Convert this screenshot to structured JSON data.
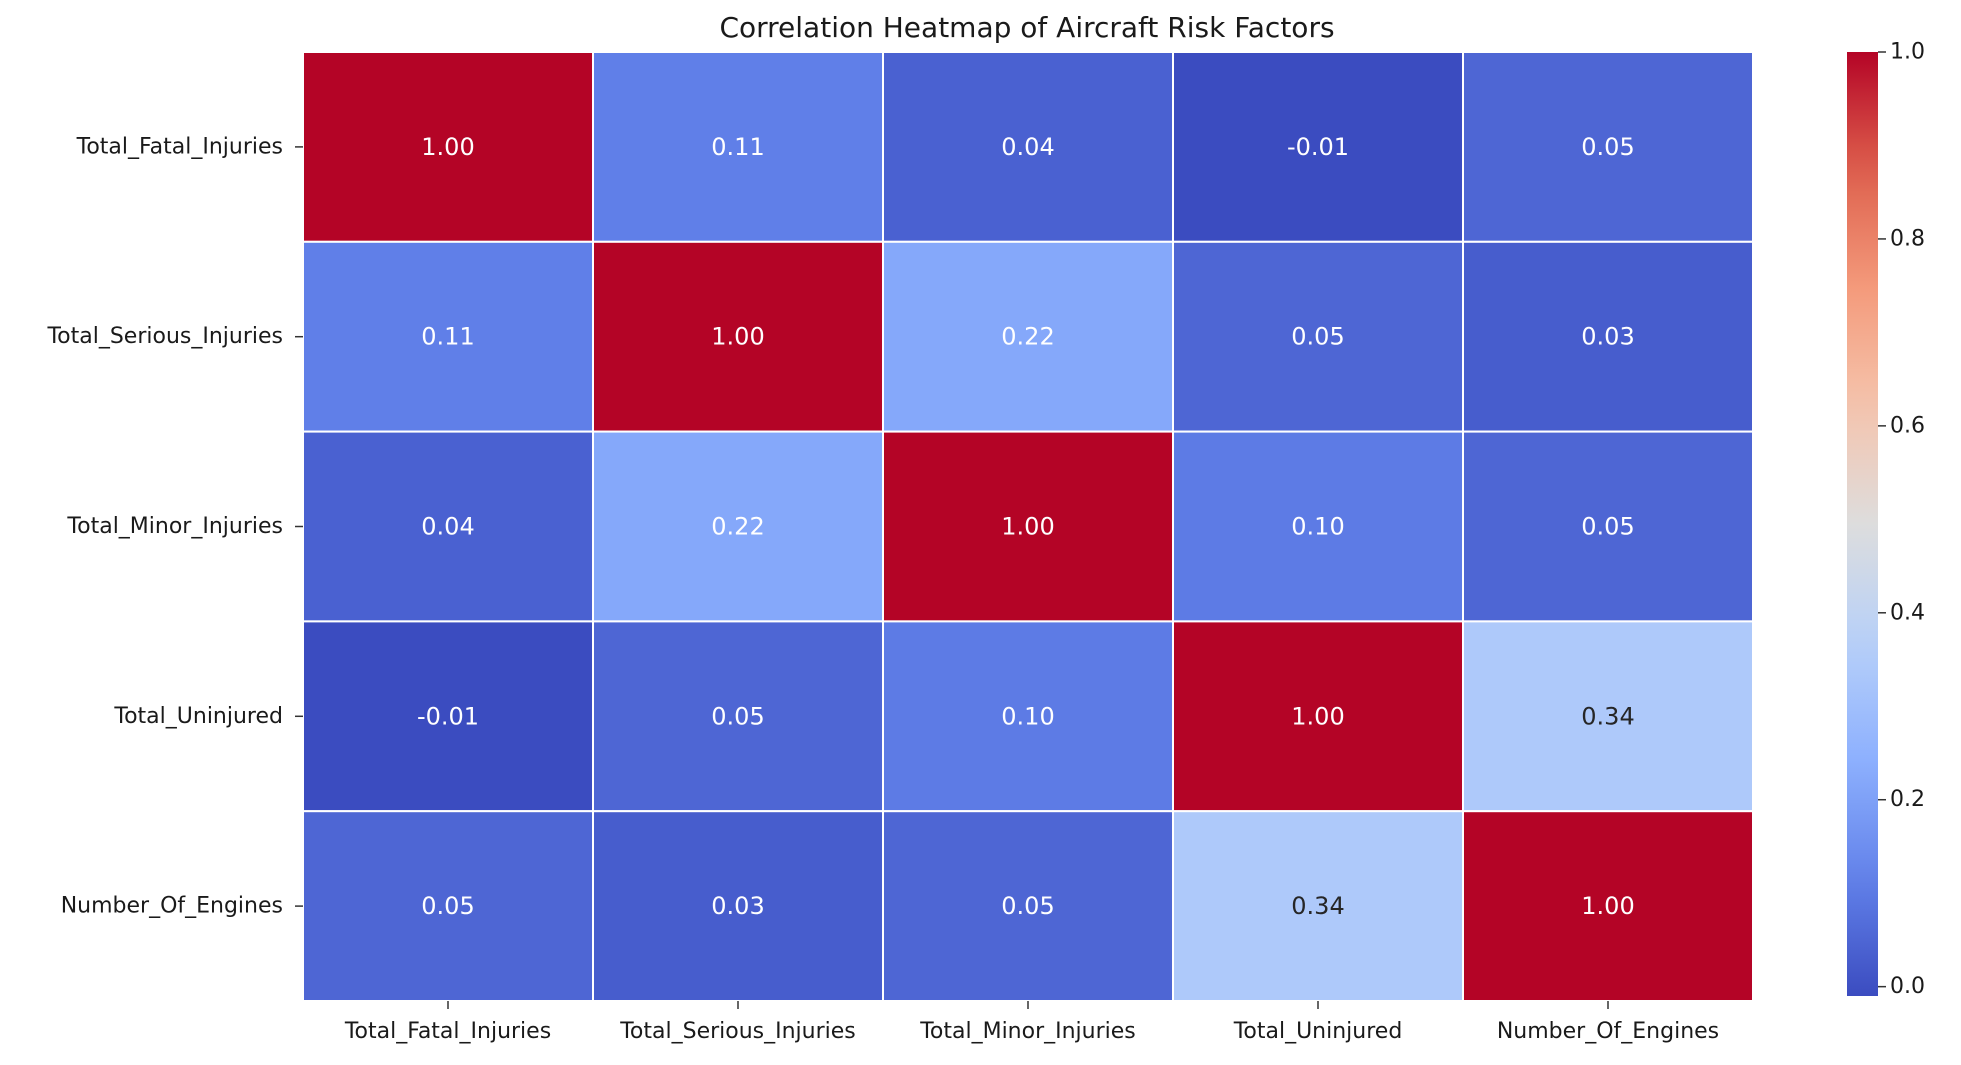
{
  "chart_data": {
    "type": "heatmap",
    "title": "Correlation Heatmap of Aircraft Risk Factors",
    "xlabel": "",
    "ylabel": "",
    "x_categories": [
      "Total_Fatal_Injuries",
      "Total_Serious_Injuries",
      "Total_Minor_Injuries",
      "Total_Uninjured",
      "Number_Of_Engines"
    ],
    "y_categories": [
      "Total_Fatal_Injuries",
      "Total_Serious_Injuries",
      "Total_Minor_Injuries",
      "Total_Uninjured",
      "Number_Of_Engines"
    ],
    "values": [
      [
        1.0,
        0.11,
        0.04,
        -0.01,
        0.05
      ],
      [
        0.11,
        1.0,
        0.22,
        0.05,
        0.03
      ],
      [
        0.04,
        0.22,
        1.0,
        0.1,
        0.05
      ],
      [
        -0.01,
        0.05,
        0.1,
        1.0,
        0.34
      ],
      [
        0.05,
        0.03,
        0.05,
        0.34,
        1.0
      ]
    ],
    "value_format_decimals": 2,
    "colormap": "coolwarm",
    "colorbar": {
      "range": [
        -0.01,
        1.0
      ],
      "ticks": [
        0.0,
        0.2,
        0.4,
        0.6,
        0.8,
        1.0
      ],
      "tick_labels": [
        "0.0",
        "0.2",
        "0.4",
        "0.6",
        "0.8",
        "1.0"
      ]
    },
    "cell_border_color": "#ffffff",
    "grid": false,
    "legend": "colorbar-right"
  }
}
